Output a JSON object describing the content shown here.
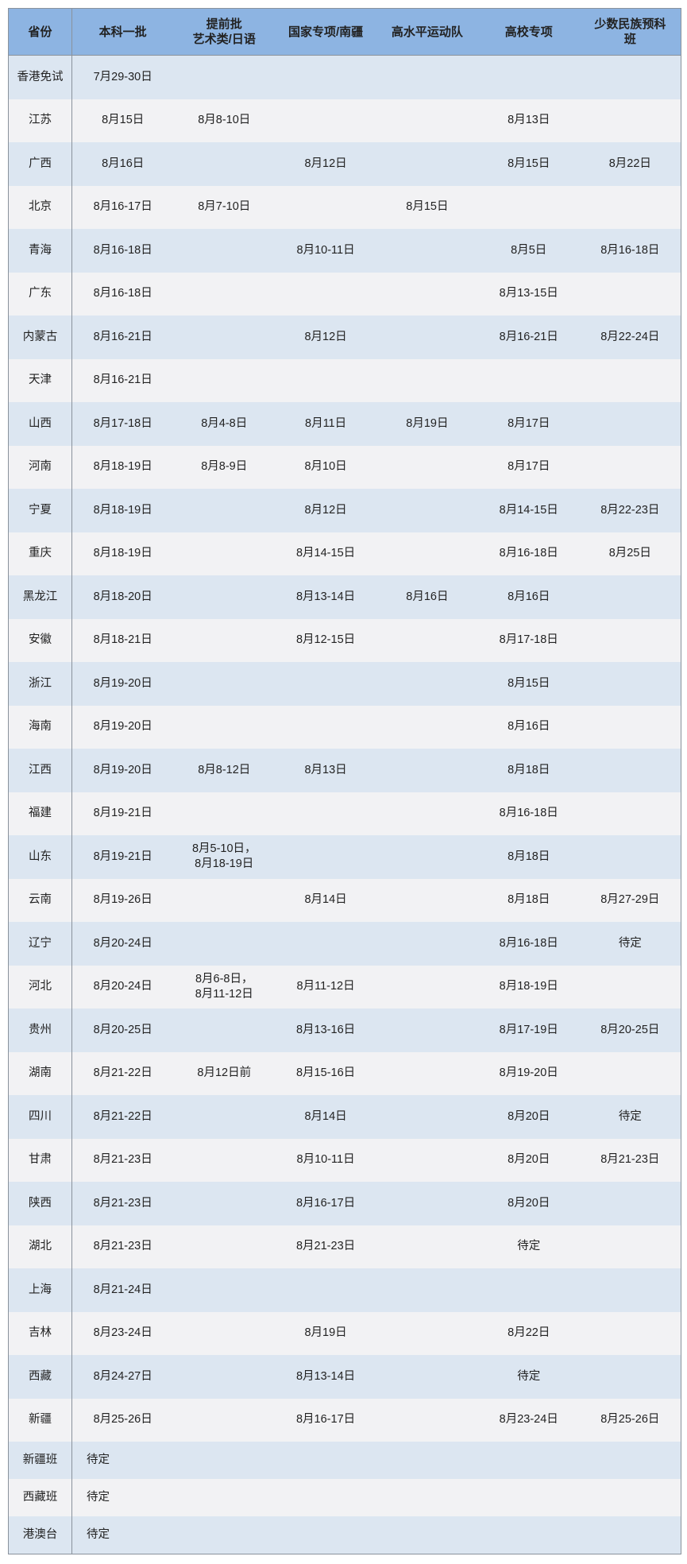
{
  "table": {
    "headers": [
      "省份",
      "本科一批",
      "提前批\n艺术类/日语",
      "国家专项/南疆",
      "高水平运动队",
      "高校专项",
      "少数民族预科\n班"
    ],
    "colors": {
      "header": "#8db4e2",
      "row_odd": "#dce6f1",
      "row_even": "#f2f2f4",
      "border": "#8a929c"
    },
    "rows": [
      [
        "香港免试",
        "7月29-30日",
        "",
        "",
        "",
        "",
        ""
      ],
      [
        "江苏",
        "8月15日",
        "8月8-10日",
        "",
        "",
        "8月13日",
        ""
      ],
      [
        "广西",
        "8月16日",
        "",
        "8月12日",
        "",
        "8月15日",
        "8月22日"
      ],
      [
        "北京",
        "8月16-17日",
        "8月7-10日",
        "",
        "8月15日",
        "",
        ""
      ],
      [
        "青海",
        "8月16-18日",
        "",
        "8月10-11日",
        "",
        "8月5日",
        "8月16-18日"
      ],
      [
        "广东",
        "8月16-18日",
        "",
        "",
        "",
        "8月13-15日",
        ""
      ],
      [
        "内蒙古",
        "8月16-21日",
        "",
        "8月12日",
        "",
        "8月16-21日",
        "8月22-24日"
      ],
      [
        "天津",
        "8月16-21日",
        "",
        "",
        "",
        "",
        ""
      ],
      [
        "山西",
        "8月17-18日",
        "8月4-8日",
        "8月11日",
        "8月19日",
        "8月17日",
        ""
      ],
      [
        "河南",
        "8月18-19日",
        "8月8-9日",
        "8月10日",
        "",
        "8月17日",
        ""
      ],
      [
        "宁夏",
        "8月18-19日",
        "",
        "8月12日",
        "",
        "8月14-15日",
        "8月22-23日"
      ],
      [
        "重庆",
        "8月18-19日",
        "",
        "8月14-15日",
        "",
        "8月16-18日",
        "8月25日"
      ],
      [
        "黑龙江",
        "8月18-20日",
        "",
        "8月13-14日",
        "8月16日",
        "8月16日",
        ""
      ],
      [
        "安徽",
        "8月18-21日",
        "",
        "8月12-15日",
        "",
        "8月17-18日",
        ""
      ],
      [
        "浙江",
        "8月19-20日",
        "",
        "",
        "",
        "8月15日",
        ""
      ],
      [
        "海南",
        "8月19-20日",
        "",
        "",
        "",
        "8月16日",
        ""
      ],
      [
        "江西",
        "8月19-20日",
        "8月8-12日",
        "8月13日",
        "",
        "8月18日",
        ""
      ],
      [
        "福建",
        "8月19-21日",
        "",
        "",
        "",
        "8月16-18日",
        ""
      ],
      [
        "山东",
        "8月19-21日",
        "8月5-10日，\n8月18-19日",
        "",
        "",
        "8月18日",
        ""
      ],
      [
        "云南",
        "8月19-26日",
        "",
        "8月14日",
        "",
        "8月18日",
        "8月27-29日"
      ],
      [
        "辽宁",
        "8月20-24日",
        "",
        "",
        "",
        "8月16-18日",
        "待定"
      ],
      [
        "河北",
        "8月20-24日",
        "8月6-8日，\n8月11-12日",
        "8月11-12日",
        "",
        "8月18-19日",
        ""
      ],
      [
        "贵州",
        "8月20-25日",
        "",
        "8月13-16日",
        "",
        "8月17-19日",
        "8月20-25日"
      ],
      [
        "湖南",
        "8月21-22日",
        "8月12日前",
        "8月15-16日",
        "",
        "8月19-20日",
        ""
      ],
      [
        "四川",
        "8月21-22日",
        "",
        "8月14日",
        "",
        "8月20日",
        "待定"
      ],
      [
        "甘肃",
        "8月21-23日",
        "",
        "8月10-11日",
        "",
        "8月20日",
        "8月21-23日"
      ],
      [
        "陕西",
        "8月21-23日",
        "",
        "8月16-17日",
        "",
        "8月20日",
        ""
      ],
      [
        "湖北",
        "8月21-23日",
        "",
        "8月21-23日",
        "",
        "待定",
        ""
      ],
      [
        "上海",
        "8月21-24日",
        "",
        "",
        "",
        "",
        ""
      ],
      [
        "吉林",
        "8月23-24日",
        "",
        "8月19日",
        "",
        "8月22日",
        ""
      ],
      [
        "西藏",
        "8月24-27日",
        "",
        "8月13-14日",
        "",
        "待定",
        ""
      ],
      [
        "新疆",
        "8月25-26日",
        "",
        "8月16-17日",
        "",
        "8月23-24日",
        "8月25-26日"
      ],
      [
        "新疆班",
        "待定",
        "",
        "",
        "",
        "",
        ""
      ],
      [
        "西藏班",
        "待定",
        "",
        "",
        "",
        "",
        ""
      ],
      [
        "港澳台",
        "待定",
        "",
        "",
        "",
        "",
        ""
      ]
    ]
  }
}
